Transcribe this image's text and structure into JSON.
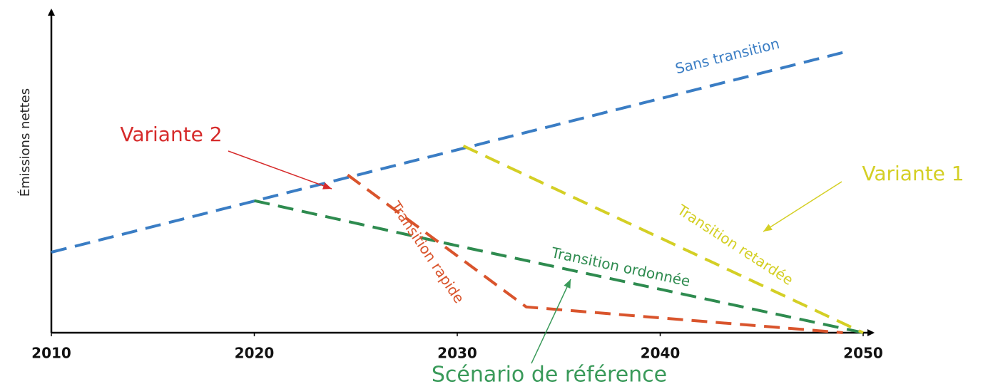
{
  "chart_data": {
    "type": "line",
    "ylabel": "Émissions nettes",
    "xlim": [
      2010,
      2050
    ],
    "xticks": [
      2010,
      2020,
      2030,
      2040,
      2050
    ],
    "ylim": [
      0,
      100
    ],
    "series": [
      {
        "name": "Sans transition",
        "color": "#3a7dc4",
        "x": [
          2010,
          2049
        ],
        "values": [
          25,
          87
        ]
      },
      {
        "name": "Transition ordonnée",
        "color": "#2e8b4f",
        "x": [
          2020,
          2030,
          2050
        ],
        "values": [
          41,
          27,
          0
        ]
      },
      {
        "name": "Transition rapide",
        "color": "#d9542c",
        "x": [
          2024.6,
          2033.4,
          2049
        ],
        "values": [
          49,
          8,
          0
        ]
      },
      {
        "name": "Transition retardée",
        "color": "#d4cf25",
        "x": [
          2030.3,
          2050
        ],
        "values": [
          58,
          0
        ]
      }
    ],
    "annotations": [
      {
        "text": "Variante 2",
        "color": "#d62b2b"
      },
      {
        "text": "Variante 1",
        "color": "#d4cf25"
      },
      {
        "text": "Scénario de référence",
        "color": "#3a9a5a"
      }
    ]
  }
}
